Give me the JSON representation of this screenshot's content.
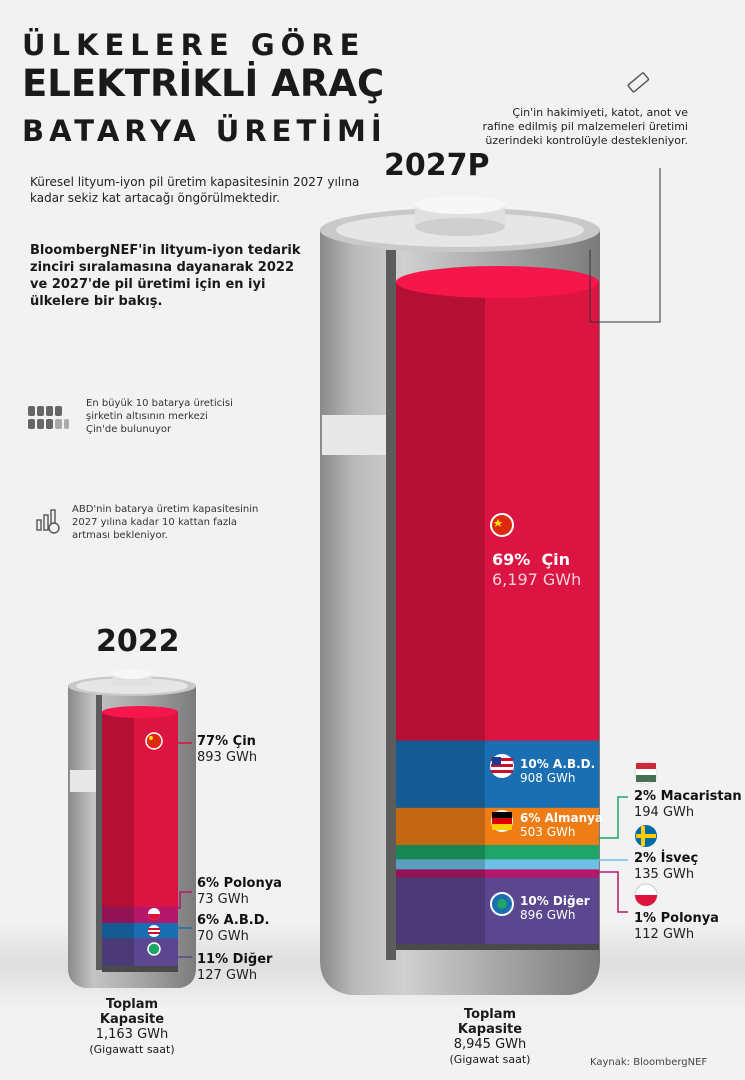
{
  "title": {
    "line1": "ÜLKELERE GÖRE",
    "line2": "ELEKTRİKLİ ARAÇ",
    "line3": "BATARYA ÜRETİMİ"
  },
  "intro_text": "Küresel lityum-iyon pil üretim kapasitesinin 2027 yılına kadar sekiz kat artacağı öngörülmektedir.",
  "method_text": "BloombergNEF'in lityum-iyon tedarik zinciri sıralamasına dayanarak 2022 ve 2027'de pil üretimi için en iyi ülkelere bir bakış.",
  "facts": {
    "top10": "En büyük 10 batarya üreticisi şirketin altısının merkezi Çin'de bulunuyor",
    "usa": "ABD'nin batarya üretim kapasitesinin 2027 yılına kadar 10 kattan fazla artması bekleniyor."
  },
  "china_note": "Çin'in hakimiyeti, katot, anot ve rafine edilmiş pil malzemeleri üretimi üzerindeki kontrolüyle destekleniyor.",
  "icons": {
    "battery": "battery-icon",
    "factories": "factory-grid-icon",
    "growth": "growth-chart-icon"
  },
  "colors": {
    "china": "#dc1442",
    "usa": "#1a6fb3",
    "germany": "#ee7d16",
    "hungary": "#1ea567",
    "sweden": "#6ec0e6",
    "poland": "#b5176a",
    "other": "#5a4790"
  },
  "chart_data": [
    {
      "type": "bar",
      "stacked": true,
      "title": "2022",
      "unit": "GWh",
      "series": [
        {
          "name": "Çin",
          "percent": 77,
          "value": 893,
          "value_label": "893 GWh"
        },
        {
          "name": "Polonya",
          "percent": 6,
          "value": 73,
          "value_label": "73 GWh"
        },
        {
          "name": "A.B.D.",
          "percent": 6,
          "value": 70,
          "value_label": "70 GWh"
        },
        {
          "name": "Diğer",
          "percent": 11,
          "value": 127,
          "value_label": "127 GWh"
        }
      ],
      "total_label_1": "Toplam",
      "total_label_2": "Kapasite",
      "total_value": "1,163 GWh",
      "total_unit": "(Gigawatt saat)"
    },
    {
      "type": "bar",
      "stacked": true,
      "title": "2027P",
      "unit": "GWh",
      "series": [
        {
          "name": "Çin",
          "percent": 69,
          "value": 6197,
          "value_label": "6,197 GWh"
        },
        {
          "name": "A.B.D.",
          "percent": 10,
          "value": 908,
          "value_label": "908 GWh"
        },
        {
          "name": "Almanya",
          "percent": 6,
          "value": 503,
          "value_label": "503 GWh"
        },
        {
          "name": "Macaristan",
          "percent": 2,
          "value": 194,
          "value_label": "194 GWh"
        },
        {
          "name": "İsveç",
          "percent": 2,
          "value": 135,
          "value_label": "135 GWh"
        },
        {
          "name": "Polonya",
          "percent": 1,
          "value": 112,
          "value_label": "112 GWh"
        },
        {
          "name": "Diğer",
          "percent": 10,
          "value": 896,
          "value_label": "896 GWh"
        }
      ],
      "total_label_1": "Toplam",
      "total_label_2": "Kapasite",
      "total_value": "8,945 GWh",
      "total_unit": "(Gigawat saat)"
    }
  ],
  "source": "Kaynak: BloombergNEF"
}
